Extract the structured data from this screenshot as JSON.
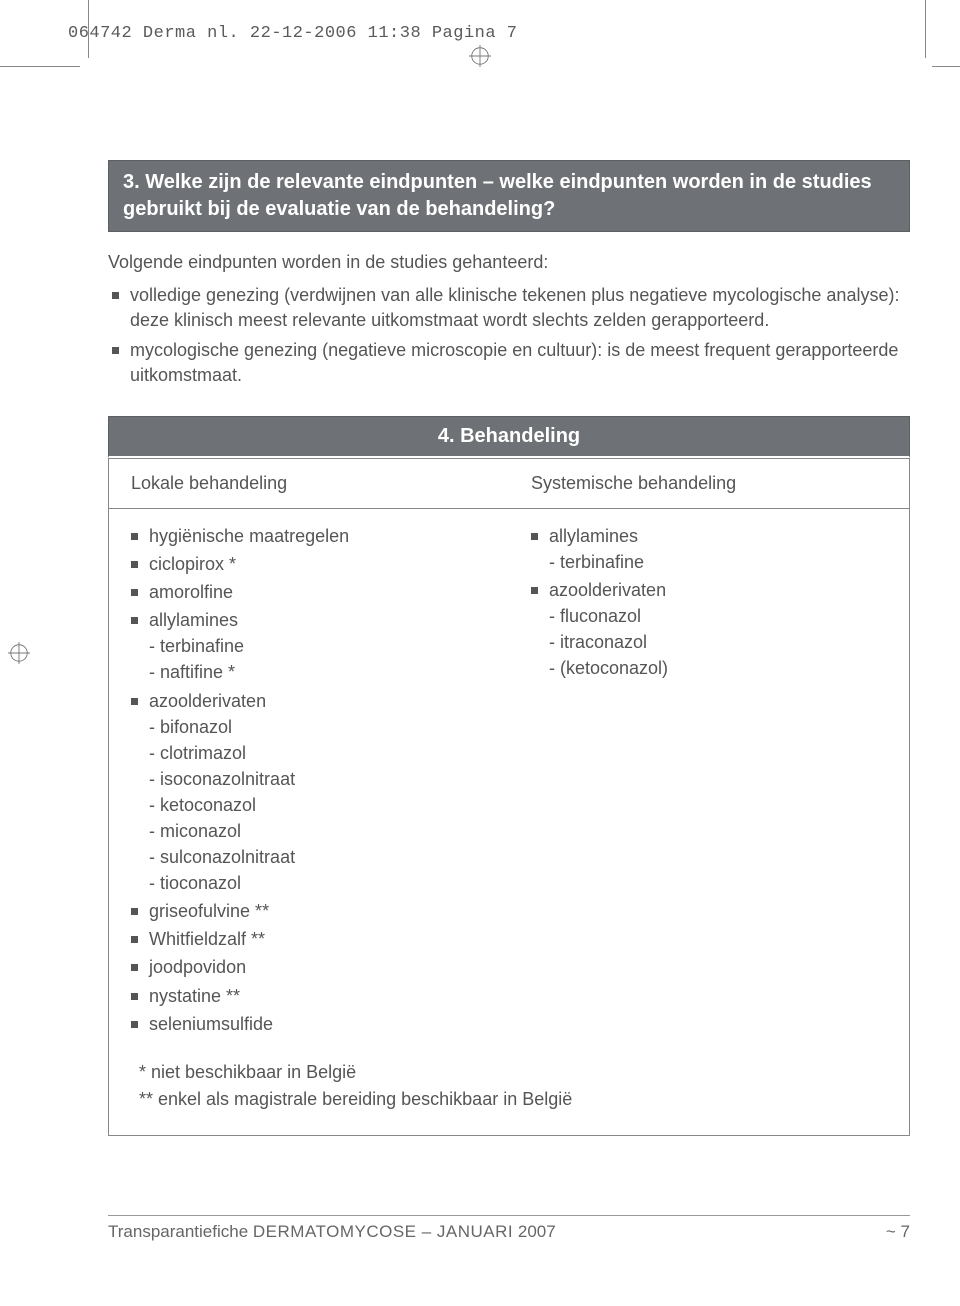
{
  "print": {
    "header": "064742 Derma nl.  22-12-2006  11:38  Pagina 7"
  },
  "section3": {
    "title": "3. Welke zijn de relevante eindpunten – welke eindpunten worden in de studies gebruikt bij de evaluatie van de behandeling?",
    "intro": "Volgende eindpunten worden in de studies gehanteerd:",
    "bullets": [
      "volledige genezing (verdwijnen van alle klinische tekenen plus negatieve mycologische analyse): deze klinisch meest relevante uitkomstmaat wordt slechts zelden gerapporteerd.",
      "mycologische genezing (negatieve microscopie en cultuur): is de meest frequent gerapporteerde uitkomstmaat."
    ]
  },
  "section4": {
    "title": "4. Behandeling",
    "colHeaders": {
      "left": "Lokale behandeling",
      "right": "Systemische behandeling"
    },
    "local": {
      "items": [
        {
          "label": "hygiënische maatregelen"
        },
        {
          "label": "ciclopirox *"
        },
        {
          "label": "amorolfine"
        },
        {
          "label": "allylamines",
          "subs": [
            "- terbinafine",
            "- naftifine *"
          ]
        },
        {
          "label": "azoolderivaten",
          "subs": [
            "- bifonazol",
            "- clotrimazol",
            "- isoconazolnitraat",
            "- ketoconazol",
            "- miconazol",
            "- sulconazolnitraat",
            "- tioconazol"
          ]
        },
        {
          "label": "griseofulvine **"
        },
        {
          "label": "Whitfieldzalf **"
        },
        {
          "label": "joodpovidon"
        },
        {
          "label": "nystatine **"
        },
        {
          "label": "seleniumsulfide"
        }
      ]
    },
    "systemic": {
      "items": [
        {
          "label": "allylamines",
          "subs": [
            "- terbinafine"
          ]
        },
        {
          "label": "azoolderivaten",
          "subs": [
            "- fluconazol",
            "- itraconazol",
            "- (ketoconazol)"
          ]
        }
      ]
    },
    "footnotes": [
      "* niet beschikbaar in België",
      "** enkel als magistrale bereiding beschikbaar in België"
    ]
  },
  "footer": {
    "left_a": "Transparantiefiche ",
    "left_b": "DERMATOMYCOSE – JANUARI",
    "left_c": " 2007",
    "page": "~ 7"
  },
  "style": {
    "header_bg": "#6e7175",
    "text_color": "#555555",
    "border_color": "#888888",
    "page_bg": "#ffffff"
  }
}
